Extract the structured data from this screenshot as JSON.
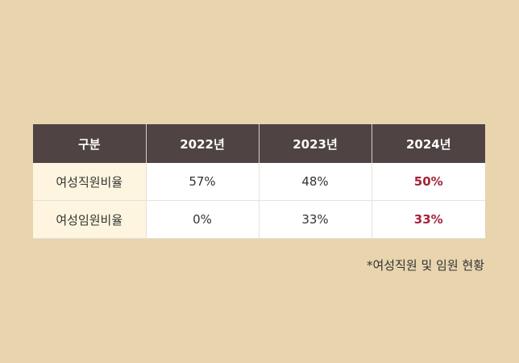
{
  "table": {
    "headers": [
      "구분",
      "2022년",
      "2023년",
      "2024년"
    ],
    "rows": [
      {
        "label": "여성직원비율",
        "values": [
          "57%",
          "48%",
          "50%"
        ]
      },
      {
        "label": "여성임원비율",
        "values": [
          "0%",
          "33%",
          "33%"
        ]
      }
    ]
  },
  "footnote": "*여성직원 및 임원 현황",
  "colors": {
    "page_background": "#e8d5ae",
    "header_background": "#4f4343",
    "row_label_background": "#fdf5df",
    "highlight_text": "#a3233a"
  }
}
